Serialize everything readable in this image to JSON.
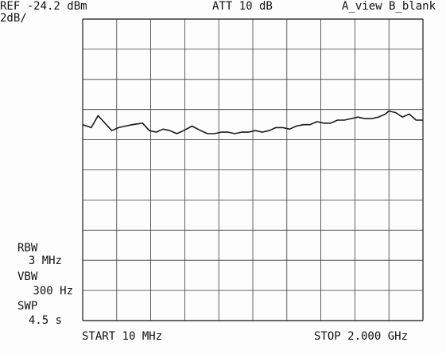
{
  "header": {
    "ref": "REF -24.2 dBm",
    "scale": "2dB/",
    "att": "ATT 10 dB",
    "view": "A_view B_blank"
  },
  "footer": {
    "start": "START 10 MHz",
    "stop": "STOP 2.000 GHz"
  },
  "settings": {
    "rbw_label": "RBW",
    "rbw_value": "3 MHz",
    "vbw_label": "VBW",
    "vbw_value": "300 Hz",
    "swp_label": "SWP",
    "swp_value": "4.5 s"
  },
  "chart_data": {
    "type": "line",
    "xlabel": "",
    "ylabel": "",
    "x_unit": "MHz",
    "y_unit": "dBm",
    "xlim": [
      10,
      2000
    ],
    "ylim": [
      -44.2,
      -24.2
    ],
    "reference_level": -24.2,
    "y_per_division": 2,
    "grid": true,
    "series": [
      {
        "x": [
          10,
          60,
          100,
          140,
          180,
          220,
          260,
          300,
          360,
          400,
          440,
          480,
          520,
          560,
          600,
          650,
          700,
          740,
          780,
          820,
          860,
          900,
          940,
          980,
          1020,
          1060,
          1100,
          1140,
          1180,
          1220,
          1260,
          1300,
          1340,
          1380,
          1420,
          1460,
          1500,
          1540,
          1580,
          1620,
          1660,
          1700,
          1740,
          1780,
          1800,
          1840,
          1880,
          1920,
          1960,
          2000
        ],
        "values": [
          -31.2,
          -31.4,
          -30.6,
          -31.1,
          -31.6,
          -31.4,
          -31.3,
          -31.2,
          -31.1,
          -31.6,
          -31.7,
          -31.5,
          -31.6,
          -31.8,
          -31.6,
          -31.3,
          -31.6,
          -31.8,
          -31.8,
          -31.7,
          -31.7,
          -31.8,
          -31.7,
          -31.7,
          -31.6,
          -31.7,
          -31.6,
          -31.4,
          -31.4,
          -31.5,
          -31.3,
          -31.2,
          -31.2,
          -31.0,
          -31.1,
          -31.1,
          -30.9,
          -30.9,
          -30.8,
          -30.7,
          -30.8,
          -30.8,
          -30.7,
          -30.5,
          -30.3,
          -30.4,
          -30.7,
          -30.5,
          -30.9,
          -30.9
        ]
      }
    ]
  }
}
